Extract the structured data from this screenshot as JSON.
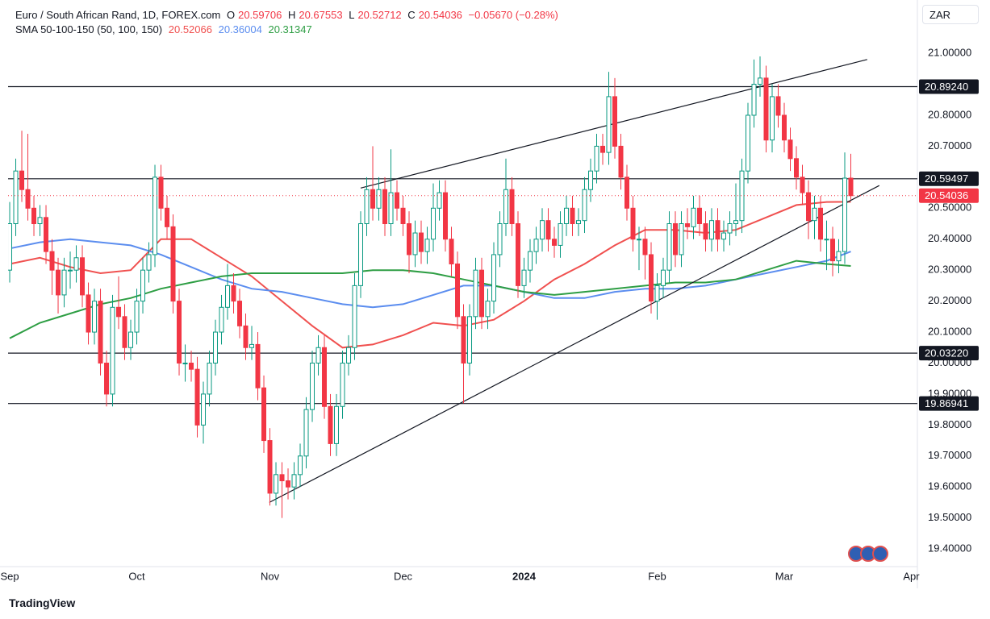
{
  "chart_data": {
    "type": "candlestick",
    "title": "Euro / South African Rand, 1D, FOREX.com",
    "ohlc_letters": [
      "O",
      "H",
      "L",
      "C"
    ],
    "change": "−0.05670 (−0.28%)",
    "indicator": "SMA 50-100-150 (50, 100, 150)",
    "currency": "ZAR",
    "brand": "TradingView",
    "up_color": "#089981",
    "down_color": "#f23645",
    "xlim": [
      -0.27,
      150
    ],
    "ylim": [
      19.343,
      21.172
    ],
    "xticks": [
      {
        "value": 0,
        "label": "Sep"
      },
      {
        "value": 21,
        "label": "Oct"
      },
      {
        "value": 43,
        "label": "Nov"
      },
      {
        "value": 65,
        "label": "Dec"
      },
      {
        "value": 85,
        "label": "2024"
      },
      {
        "value": 107,
        "label": "Feb"
      },
      {
        "value": 128,
        "label": "Mar"
      },
      {
        "value": 149,
        "label": "Apr"
      }
    ],
    "yticks": [
      {
        "value": 19.4,
        "label": "19.40000"
      },
      {
        "value": 19.5,
        "label": "19.50000"
      },
      {
        "value": 19.6,
        "label": "19.60000"
      },
      {
        "value": 19.7,
        "label": "19.70000"
      },
      {
        "value": 19.8,
        "label": "19.80000"
      },
      {
        "value": 19.9,
        "label": "19.90000"
      },
      {
        "value": 20.0,
        "label": "20.00000"
      },
      {
        "value": 20.1,
        "label": "20.10000"
      },
      {
        "value": 20.2,
        "label": "20.20000"
      },
      {
        "value": 20.3,
        "label": "20.30000"
      },
      {
        "value": 20.4,
        "label": "20.40000"
      },
      {
        "value": 20.5,
        "label": "20.50000"
      },
      {
        "value": 20.6,
        "label": "20.60000"
      },
      {
        "value": 20.7,
        "label": "20.70000"
      },
      {
        "value": 20.8,
        "label": "20.80000"
      },
      {
        "value": 20.9,
        "label": "20.90000"
      },
      {
        "value": 21.0,
        "label": "21.00000"
      }
    ],
    "candles": {
      "open": [
        20.3,
        20.45,
        20.62,
        20.56,
        20.5,
        20.45,
        20.47,
        20.36,
        20.3,
        20.22,
        20.3,
        20.3,
        20.34,
        20.22,
        20.1,
        20.2,
        20.0,
        19.9,
        20.18,
        20.15,
        20.05,
        20.1,
        20.2,
        20.3,
        20.35,
        20.6,
        20.5,
        20.44,
        20.2,
        20.0,
        20.0,
        19.98,
        19.8,
        19.9,
        20.0,
        20.1,
        20.18,
        20.25,
        20.2,
        20.12,
        20.05,
        20.06,
        19.92,
        19.75,
        19.58,
        19.64,
        19.62,
        19.6,
        19.64,
        19.7,
        19.85,
        20.0,
        20.05,
        19.86,
        19.74,
        19.86,
        20.0,
        20.05,
        20.25,
        20.45,
        20.56,
        20.5,
        20.56,
        20.45,
        20.55,
        20.5,
        20.45,
        20.35,
        20.42,
        20.36,
        20.4,
        20.5,
        20.55,
        20.4,
        20.32,
        20.15,
        20.0,
        20.15,
        20.3,
        20.15,
        20.2,
        20.35,
        20.45,
        20.56,
        20.45,
        20.25,
        20.3,
        20.36,
        20.4,
        20.46,
        20.4,
        20.38,
        20.45,
        20.5,
        20.45,
        20.46,
        20.56,
        20.62,
        20.7,
        20.68,
        20.86,
        20.7,
        20.6,
        20.5,
        20.4,
        20.4,
        20.35,
        20.2,
        20.25,
        20.3,
        20.45,
        20.35,
        20.45,
        20.44,
        20.5,
        20.45,
        20.4,
        20.46,
        20.4,
        20.42,
        20.45,
        20.46,
        20.62,
        20.8,
        20.9,
        20.92,
        20.72,
        20.86,
        20.8,
        20.72,
        20.66,
        20.6,
        20.55,
        20.46,
        20.5,
        20.4,
        20.4,
        20.33,
        20.36,
        20.59706
      ],
      "high": [
        20.52,
        20.66,
        20.75,
        20.74,
        20.54,
        20.51,
        20.51,
        20.4,
        20.34,
        20.34,
        20.36,
        20.38,
        20.38,
        20.26,
        20.24,
        20.24,
        20.04,
        20.22,
        20.28,
        20.19,
        20.14,
        20.24,
        20.34,
        20.39,
        20.64,
        20.64,
        20.54,
        20.48,
        20.24,
        20.06,
        20.04,
        20.02,
        19.94,
        20.04,
        20.14,
        20.22,
        20.32,
        20.29,
        20.24,
        20.16,
        20.12,
        20.1,
        19.96,
        19.79,
        19.68,
        19.68,
        19.66,
        19.68,
        19.74,
        19.89,
        20.04,
        20.09,
        20.09,
        19.9,
        19.9,
        20.04,
        20.09,
        20.29,
        20.49,
        20.6,
        20.7,
        20.6,
        20.6,
        20.69,
        20.59,
        20.54,
        20.49,
        20.46,
        20.46,
        20.44,
        20.58,
        20.59,
        20.59,
        20.44,
        20.36,
        20.19,
        20.19,
        20.34,
        20.34,
        20.24,
        20.39,
        20.49,
        20.66,
        20.6,
        20.49,
        20.34,
        20.4,
        20.44,
        20.5,
        20.5,
        20.44,
        20.49,
        20.54,
        20.54,
        20.5,
        20.6,
        20.66,
        20.74,
        20.74,
        20.94,
        20.92,
        20.74,
        20.64,
        20.54,
        20.44,
        20.44,
        20.39,
        20.29,
        20.34,
        20.49,
        20.49,
        20.49,
        20.5,
        20.54,
        20.54,
        20.49,
        20.5,
        20.5,
        20.46,
        20.49,
        20.58,
        20.66,
        20.84,
        20.98,
        20.99,
        20.96,
        20.9,
        20.9,
        20.84,
        20.76,
        20.7,
        20.64,
        20.59,
        20.54,
        20.54,
        20.46,
        20.44,
        20.4,
        20.68,
        20.67553
      ],
      "low": [
        20.26,
        20.41,
        20.52,
        20.46,
        20.41,
        20.41,
        20.32,
        20.22,
        20.16,
        20.18,
        20.24,
        20.26,
        20.18,
        20.06,
        20.06,
        19.96,
        19.86,
        19.86,
        20.11,
        20.01,
        20.01,
        20.06,
        20.16,
        20.26,
        20.31,
        20.46,
        20.4,
        20.16,
        19.96,
        19.94,
        19.94,
        19.76,
        19.74,
        19.86,
        19.96,
        20.06,
        20.14,
        20.16,
        20.08,
        20.01,
        20.01,
        19.88,
        19.71,
        19.54,
        19.54,
        19.5,
        19.56,
        19.56,
        19.6,
        19.66,
        19.81,
        19.96,
        19.82,
        19.7,
        19.7,
        19.82,
        19.96,
        20.01,
        20.21,
        20.41,
        20.46,
        20.46,
        20.41,
        20.41,
        20.46,
        20.41,
        20.29,
        20.31,
        20.32,
        20.32,
        20.36,
        20.46,
        20.36,
        20.28,
        20.11,
        19.87,
        19.96,
        20.11,
        20.11,
        20.11,
        20.16,
        20.31,
        20.41,
        20.41,
        20.21,
        20.21,
        20.26,
        20.32,
        20.36,
        20.36,
        20.34,
        20.34,
        20.41,
        20.41,
        20.41,
        20.42,
        20.52,
        20.58,
        20.64,
        20.64,
        20.66,
        20.56,
        20.46,
        20.36,
        20.3,
        20.27,
        20.16,
        20.14,
        20.21,
        20.26,
        20.31,
        20.31,
        20.4,
        20.4,
        20.41,
        20.36,
        20.36,
        20.36,
        20.36,
        20.38,
        20.41,
        20.42,
        20.58,
        20.76,
        20.86,
        20.68,
        20.68,
        20.76,
        20.68,
        20.62,
        20.56,
        20.51,
        20.4,
        20.4,
        20.36,
        20.3,
        20.28,
        20.29,
        20.32,
        20.52712
      ],
      "close": [
        20.45,
        20.62,
        20.56,
        20.5,
        20.45,
        20.47,
        20.36,
        20.3,
        20.22,
        20.3,
        20.3,
        20.34,
        20.22,
        20.1,
        20.2,
        20.0,
        19.9,
        20.18,
        20.15,
        20.05,
        20.1,
        20.2,
        20.3,
        20.35,
        20.6,
        20.5,
        20.44,
        20.2,
        20.0,
        20.0,
        19.98,
        19.8,
        19.9,
        20.0,
        20.1,
        20.18,
        20.25,
        20.2,
        20.12,
        20.05,
        20.06,
        19.92,
        19.75,
        19.58,
        19.64,
        19.62,
        19.6,
        19.64,
        19.7,
        19.85,
        20.0,
        20.05,
        19.86,
        19.74,
        19.86,
        20.0,
        20.05,
        20.25,
        20.45,
        20.56,
        20.5,
        20.56,
        20.45,
        20.55,
        20.5,
        20.45,
        20.35,
        20.42,
        20.36,
        20.4,
        20.5,
        20.55,
        20.4,
        20.32,
        20.15,
        20.0,
        20.15,
        20.3,
        20.15,
        20.2,
        20.35,
        20.45,
        20.56,
        20.45,
        20.25,
        20.3,
        20.36,
        20.4,
        20.46,
        20.4,
        20.38,
        20.45,
        20.5,
        20.45,
        20.46,
        20.56,
        20.62,
        20.7,
        20.68,
        20.86,
        20.7,
        20.6,
        20.5,
        20.4,
        20.4,
        20.35,
        20.2,
        20.25,
        20.3,
        20.45,
        20.35,
        20.45,
        20.44,
        20.5,
        20.45,
        20.4,
        20.46,
        20.4,
        20.42,
        20.45,
        20.46,
        20.62,
        20.8,
        20.9,
        20.92,
        20.72,
        20.86,
        20.8,
        20.72,
        20.66,
        20.6,
        20.55,
        20.46,
        20.5,
        20.4,
        20.4,
        20.33,
        20.36,
        20.597,
        20.54036
      ]
    },
    "series": [
      {
        "color": "#f0504f",
        "x": [
          0,
          5,
          10,
          15,
          20,
          25,
          30,
          35,
          40,
          45,
          50,
          55,
          60,
          65,
          70,
          75,
          80,
          85,
          90,
          95,
          100,
          105,
          110,
          115,
          120,
          125,
          130,
          135,
          139
        ],
        "values": [
          20.32,
          20.34,
          20.31,
          20.29,
          20.3,
          20.4,
          20.4,
          20.34,
          20.28,
          20.2,
          20.12,
          20.05,
          20.06,
          20.09,
          20.13,
          20.12,
          20.14,
          20.2,
          20.27,
          20.32,
          20.38,
          20.43,
          20.43,
          20.42,
          20.43,
          20.47,
          20.51,
          20.52,
          20.52066
        ]
      },
      {
        "color": "#5b8def",
        "x": [
          0,
          5,
          10,
          15,
          20,
          25,
          30,
          35,
          40,
          45,
          50,
          55,
          60,
          65,
          70,
          75,
          80,
          85,
          90,
          95,
          100,
          105,
          110,
          115,
          120,
          125,
          130,
          135,
          139
        ],
        "values": [
          20.37,
          20.39,
          20.4,
          20.39,
          20.38,
          20.35,
          20.31,
          20.27,
          20.24,
          20.23,
          20.21,
          20.19,
          20.18,
          20.19,
          20.22,
          20.25,
          20.25,
          20.23,
          20.21,
          20.21,
          20.23,
          20.24,
          20.24,
          20.25,
          20.27,
          20.29,
          20.31,
          20.33,
          20.36004
        ]
      },
      {
        "color": "#2e9e44",
        "x": [
          0,
          5,
          10,
          15,
          20,
          25,
          30,
          35,
          40,
          45,
          50,
          55,
          60,
          65,
          70,
          75,
          80,
          85,
          90,
          95,
          100,
          105,
          110,
          115,
          120,
          125,
          130,
          135,
          139
        ],
        "values": [
          20.08,
          20.13,
          20.16,
          20.19,
          20.21,
          20.24,
          20.26,
          20.28,
          20.29,
          20.29,
          20.29,
          20.29,
          20.3,
          20.3,
          20.29,
          20.27,
          20.25,
          20.23,
          20.22,
          20.23,
          20.24,
          20.25,
          20.26,
          20.26,
          20.27,
          20.3,
          20.33,
          20.32,
          20.31347
        ]
      }
    ],
    "levels": [
      {
        "value": 20.8924,
        "label": "20.89240"
      },
      {
        "value": 20.59497,
        "label": "20.59497"
      },
      {
        "value": 20.0322,
        "label": "20.03220"
      },
      {
        "value": 19.86941,
        "label": "19.86941"
      }
    ],
    "trendlines": [
      {
        "x": [
          58,
          141.7
        ],
        "values": [
          20.565,
          20.98
        ]
      },
      {
        "x": [
          42.9,
          143.7
        ],
        "values": [
          19.55,
          20.573
        ]
      }
    ]
  }
}
